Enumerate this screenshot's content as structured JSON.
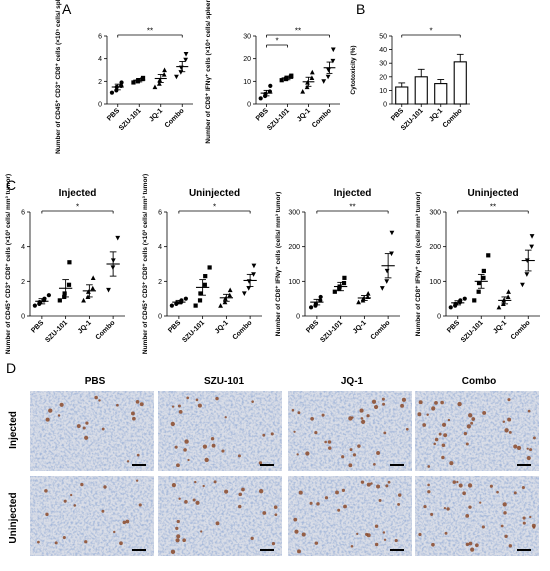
{
  "panel_letters": [
    "A",
    "B",
    "C",
    "D"
  ],
  "chart_data": [
    {
      "id": "A1",
      "panel": "A",
      "type": "scatter",
      "group": "A",
      "title": "",
      "ylabel": "Number of CD45⁺ CD3⁺ CD8⁺ cells (×10⁵ cells/ spleen)",
      "categories": [
        "PBS",
        "SZU-101",
        "JQ-1",
        "Combo"
      ],
      "ylim": [
        0,
        6
      ],
      "yticks": [
        0,
        2,
        4,
        6
      ],
      "means": [
        1.5,
        2.1,
        2.25,
        3.3
      ],
      "sems": [
        0.25,
        0.15,
        0.35,
        0.45
      ],
      "points": [
        [
          1.0,
          1.2,
          1.5,
          1.6,
          1.9
        ],
        [
          1.9,
          2.0,
          2.1,
          2.2,
          2.3
        ],
        [
          1.5,
          1.8,
          2.1,
          2.6,
          3.0
        ],
        [
          2.4,
          2.8,
          3.2,
          3.9,
          4.4
        ]
      ],
      "markers": [
        "circle",
        "square",
        "triangle-up",
        "triangle-down"
      ],
      "significance": [
        {
          "from": 0,
          "to": 3,
          "label": "**"
        }
      ]
    },
    {
      "id": "A2",
      "panel": "A",
      "type": "scatter",
      "group": "A",
      "title": "",
      "ylabel": "Number of CD8⁺ IFNγ⁺ cells (×10⁴ cells/ spleen)",
      "categories": [
        "PBS",
        "SZU-101",
        "JQ-1",
        "Combo"
      ],
      "ylim": [
        0,
        30
      ],
      "yticks": [
        0,
        10,
        20,
        30
      ],
      "means": [
        4.8,
        11.5,
        9.8,
        16.0
      ],
      "sems": [
        1.2,
        0.8,
        2.0,
        2.5
      ],
      "points": [
        [
          2.5,
          3.5,
          4.5,
          5.5,
          8.0
        ],
        [
          10.5,
          11.0,
          11.5,
          12.0,
          12.5
        ],
        [
          5.5,
          7.5,
          9.5,
          11.5,
          14.0
        ],
        [
          10.0,
          12.0,
          15.0,
          19.0,
          24.0
        ]
      ],
      "markers": [
        "circle",
        "square",
        "triangle-up",
        "triangle-down"
      ],
      "significance": [
        {
          "from": 0,
          "to": 1,
          "label": "*"
        },
        {
          "from": 0,
          "to": 3,
          "label": "**"
        }
      ]
    },
    {
      "id": "B1",
      "panel": "B",
      "type": "bar",
      "group": "B",
      "title": "",
      "ylabel": "Cytotoxicity (%)",
      "categories": [
        "PBS",
        "SZU-101",
        "JQ-1",
        "Combo"
      ],
      "ylim": [
        0,
        50
      ],
      "yticks": [
        0,
        10,
        20,
        30,
        40,
        50
      ],
      "values": [
        12.5,
        20.0,
        15.0,
        31.0
      ],
      "sems": [
        3.0,
        5.5,
        3.0,
        5.5
      ],
      "significance": [
        {
          "from": 0,
          "to": 3,
          "label": "*"
        }
      ]
    },
    {
      "id": "C1",
      "panel": "C",
      "type": "scatter",
      "group": "C",
      "title": "Injected",
      "ylabel": "Number of CD45⁺ CD3⁺ CD8⁺ cells (×10³ cells/ mm³ tumor)",
      "categories": [
        "PBS",
        "SZU-101",
        "JQ-1",
        "Combo"
      ],
      "ylim": [
        0,
        6
      ],
      "yticks": [
        0,
        2,
        4,
        6
      ],
      "means": [
        0.85,
        1.6,
        1.45,
        3.0
      ],
      "sems": [
        0.15,
        0.5,
        0.35,
        0.7
      ],
      "points": [
        [
          0.6,
          0.7,
          0.8,
          0.9,
          1.0,
          1.2
        ],
        [
          0.9,
          1.1,
          1.3,
          1.8,
          3.1
        ],
        [
          0.9,
          1.1,
          1.4,
          1.6,
          2.2
        ],
        [
          1.5,
          2.8,
          3.2,
          4.5
        ]
      ],
      "markers": [
        "circle",
        "square",
        "triangle-up",
        "triangle-down"
      ],
      "significance": [
        {
          "from": 0,
          "to": 3,
          "label": "*"
        }
      ]
    },
    {
      "id": "C2",
      "panel": "C",
      "type": "scatter",
      "group": "C",
      "title": "Uninjected",
      "ylabel": "Number of CD45⁺ CD3⁺ CD8⁺ cells (×10³ cells/ mm³ tumor)",
      "categories": [
        "PBS",
        "SZU-101",
        "JQ-1",
        "Combo"
      ],
      "ylim": [
        0,
        6
      ],
      "yticks": [
        0,
        2,
        4,
        6
      ],
      "means": [
        0.8,
        1.65,
        1.05,
        2.05
      ],
      "sems": [
        0.1,
        0.45,
        0.2,
        0.35
      ],
      "points": [
        [
          0.6,
          0.7,
          0.75,
          0.8,
          0.9,
          1.0
        ],
        [
          0.6,
          0.9,
          1.3,
          1.8,
          2.3,
          2.8
        ],
        [
          0.6,
          0.8,
          1.0,
          1.2,
          1.5
        ],
        [
          1.3,
          1.6,
          2.0,
          2.4,
          2.9
        ]
      ],
      "markers": [
        "circle",
        "square",
        "triangle-up",
        "triangle-down"
      ],
      "significance": [
        {
          "from": 0,
          "to": 3,
          "label": "*"
        }
      ]
    },
    {
      "id": "C3",
      "panel": "C",
      "type": "scatter",
      "group": "C",
      "title": "Injected",
      "ylabel": "Number of CD8⁺ IFNγ⁺ cells (cells/ mm³ tumor)",
      "categories": [
        "PBS",
        "SZU-101",
        "JQ-1",
        "Combo"
      ],
      "ylim": [
        0,
        300
      ],
      "yticks": [
        0,
        100,
        200,
        300
      ],
      "means": [
        40,
        85,
        52,
        145
      ],
      "sems": [
        8,
        12,
        7,
        35
      ],
      "points": [
        [
          25,
          30,
          35,
          45,
          55
        ],
        [
          70,
          78,
          85,
          95,
          110
        ],
        [
          40,
          45,
          50,
          55,
          65
        ],
        [
          80,
          100,
          130,
          180,
          240
        ]
      ],
      "markers": [
        "circle",
        "square",
        "triangle-up",
        "triangle-down"
      ],
      "significance": [
        {
          "from": 0,
          "to": 3,
          "label": "**"
        }
      ]
    },
    {
      "id": "C4",
      "panel": "C",
      "type": "scatter",
      "group": "C",
      "title": "Uninjected",
      "ylabel": "Number of CD8⁺ IFNγ⁺ cells (cells/ mm³ tumor)",
      "categories": [
        "PBS",
        "SZU-101",
        "JQ-1",
        "Combo"
      ],
      "ylim": [
        0,
        300
      ],
      "yticks": [
        0,
        100,
        200,
        300
      ],
      "means": [
        38,
        100,
        45,
        160
      ],
      "sems": [
        6,
        20,
        10,
        30
      ],
      "points": [
        [
          25,
          30,
          35,
          40,
          45,
          50
        ],
        [
          45,
          70,
          95,
          110,
          130,
          175
        ],
        [
          25,
          35,
          45,
          55,
          70
        ],
        [
          90,
          120,
          160,
          200,
          230
        ]
      ],
      "markers": [
        "circle",
        "square",
        "triangle-up",
        "triangle-down"
      ],
      "significance": [
        {
          "from": 0,
          "to": 3,
          "label": "**"
        }
      ]
    }
  ],
  "panel_d": {
    "columns": [
      "PBS",
      "SZU-101",
      "JQ-1",
      "Combo"
    ],
    "rows": [
      "Injected",
      "Uninjected"
    ],
    "stained_cell_density": [
      [
        0.15,
        0.4,
        0.7,
        0.9
      ],
      [
        0.15,
        0.45,
        0.65,
        0.85
      ]
    ],
    "colors": {
      "background": "#d9dde7",
      "nuclei": "#5871a8",
      "stained": "#8b4a2a"
    },
    "images": "IHC micrographs of CD8 staining with scale bars"
  },
  "colors": {
    "axis": "#000000",
    "bar_fill": "#ffffff",
    "marker": "#000000"
  }
}
